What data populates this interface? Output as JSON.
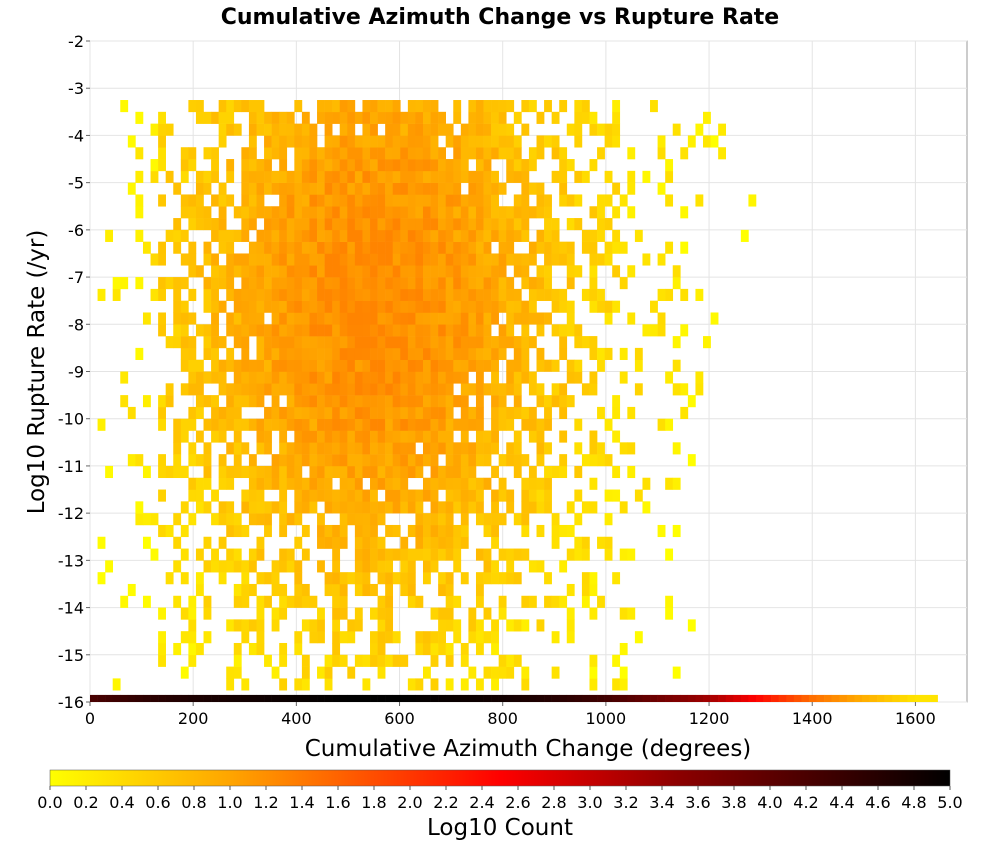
{
  "chart_data": {
    "type": "heatmap",
    "title": "Cumulative Azimuth Change vs Rupture Rate",
    "xlabel": "Cumulative Azimuth Change (degrees)",
    "ylabel": "Log10 Rupture Rate (/yr)",
    "xlim": [
      0,
      1700
    ],
    "ylim": [
      -16,
      -2
    ],
    "xticks": [
      "0",
      "200",
      "400",
      "600",
      "800",
      "1000",
      "1200",
      "1400",
      "1600"
    ],
    "yticks": [
      "-2",
      "-3",
      "-4",
      "-5",
      "-6",
      "-7",
      "-8",
      "-9",
      "-10",
      "-11",
      "-12",
      "-13",
      "-14",
      "-15",
      "-16"
    ],
    "bin_width_x": 14.67,
    "bin_height_y": 0.25,
    "grid": true,
    "colorbar": {
      "label": "Log10 Count",
      "range": [
        0.0,
        5.0
      ],
      "ticks": [
        "0.0",
        "0.2",
        "0.4",
        "0.6",
        "0.8",
        "1.0",
        "1.2",
        "1.4",
        "1.6",
        "1.8",
        "2.0",
        "2.2",
        "2.4",
        "2.6",
        "2.8",
        "3.0",
        "3.2",
        "3.4",
        "3.6",
        "3.8",
        "4.0",
        "4.2",
        "4.4",
        "4.6",
        "4.8",
        "5.0"
      ],
      "colors": [
        "#ffff00",
        "#ffa500",
        "#ff0000",
        "#8b0000",
        "#000000"
      ],
      "position": "bottom"
    },
    "main_cloud": {
      "x_range": [
        0,
        1400
      ],
      "y_range": [
        -16,
        -3.2
      ],
      "densest_region": {
        "x_center": 550,
        "y_center": -7.5
      },
      "typical_log10_count": [
        0.0,
        1.3
      ]
    },
    "bottom_row": {
      "y_center": -15.9,
      "x": [
        0,
        100,
        200,
        300,
        400,
        500,
        600,
        700,
        800,
        900,
        1000,
        1100,
        1200,
        1300,
        1400,
        1500,
        1600
      ],
      "log10_count": [
        4.2,
        4.5,
        4.7,
        4.8,
        4.9,
        5.0,
        5.0,
        4.9,
        4.8,
        4.6,
        4.3,
        3.8,
        3.3,
        2.4,
        1.5,
        0.9,
        0.3
      ]
    }
  }
}
